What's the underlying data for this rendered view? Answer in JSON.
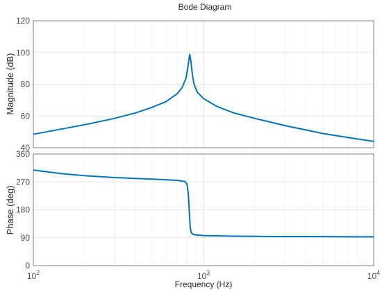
{
  "chart_data": [
    {
      "type": "line",
      "title": "Bode Diagram",
      "xlabel": "Frequency  (Hz)",
      "ylabel": "Magnitude (dB)",
      "xscale": "log",
      "xlim": [
        100,
        10000
      ],
      "ylim": [
        40,
        120
      ],
      "yticks": [
        "40",
        "60",
        "80",
        "100",
        "120"
      ],
      "grid": true,
      "color": "#0072BD",
      "series": [
        {
          "x": [
            100,
            150,
            200,
            300,
            400,
            500,
            600,
            700,
            750,
            790,
            810,
            830,
            845,
            860,
            880,
            920,
            1000,
            1200,
            1500,
            2000,
            3000,
            5000,
            7000,
            10000
          ],
          "y": [
            48.5,
            52.0,
            54.5,
            58.5,
            62.0,
            65.5,
            69.0,
            74.0,
            78.0,
            84.0,
            91.0,
            99.0,
            94.0,
            86.0,
            80.0,
            75.0,
            71.0,
            66.0,
            62.0,
            58.5,
            54.0,
            49.0,
            46.5,
            44.0
          ]
        }
      ]
    },
    {
      "type": "line",
      "xlabel": "Frequency  (Hz)",
      "ylabel": "Phase (deg)",
      "xscale": "log",
      "xlim": [
        100,
        10000
      ],
      "ylim": [
        0,
        360
      ],
      "yticks": [
        "0",
        "90",
        "180",
        "270",
        "360"
      ],
      "xticks": [
        {
          "base": "10",
          "exp": "2"
        },
        {
          "base": "10",
          "exp": "3"
        },
        {
          "base": "10",
          "exp": "4"
        }
      ],
      "grid": true,
      "color": "#0072BD",
      "series": [
        {
          "x": [
            100,
            150,
            200,
            300,
            500,
            700,
            780,
            800,
            815,
            825,
            835,
            845,
            860,
            900,
            1000,
            1500,
            2000,
            3000,
            5000,
            10000
          ],
          "y": [
            308,
            296,
            290,
            284,
            279,
            275,
            271,
            262,
            230,
            175,
            125,
            108,
            102,
            99,
            97,
            95,
            94.5,
            94,
            93.5,
            93
          ]
        }
      ]
    }
  ]
}
